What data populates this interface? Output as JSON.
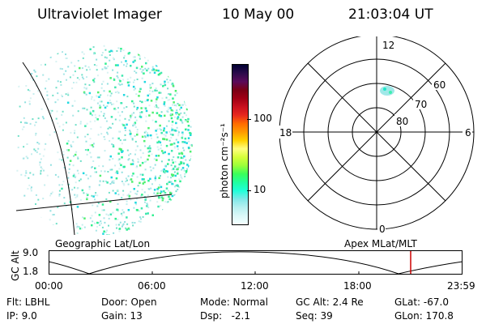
{
  "header": {
    "instrument": "Ultraviolet Imager",
    "date": "10 May 00",
    "time": "21:03:04 UT"
  },
  "colorbar": {
    "unit_label": "photon cm⁻²s⁻¹",
    "tick_100": "100",
    "tick_10": "10",
    "colors": [
      "#000033",
      "#2b0a4a",
      "#5a0a5a",
      "#7a0014",
      "#a00014",
      "#c8101e",
      "#e8281e",
      "#ff6a00",
      "#ff9a00",
      "#ffd200",
      "#ffff80",
      "#d6ff3a",
      "#9aff3a",
      "#3aff5a",
      "#20ffa0",
      "#20ffd8",
      "#80e8e8",
      "#b8f0f0",
      "#dcf8f8",
      "#f4ffff"
    ]
  },
  "polar": {
    "label_12": "12",
    "label_18": "18",
    "label_6": "6",
    "label_0": "0",
    "label_60": "60",
    "label_70": "70",
    "label_80": "80"
  },
  "altitude_panel": {
    "left_label": "Geographic Lat/Lon",
    "right_label": "Apex MLat/MLT",
    "axis_title": "GC Alt",
    "y_top": "9.0",
    "y_bottom": "1.8",
    "x_ticks": [
      "00:00",
      "06:00",
      "12:00",
      "18:00",
      "23:59"
    ],
    "current_time_marker_color": "#cc0000"
  },
  "info": {
    "flt": "Flt: LBHL",
    "ip": "IP:  9.0",
    "door": "Door: Open",
    "gain": "Gain: 13",
    "mode": "Mode: Normal",
    "dsp": "Dsp:   -2.1",
    "gc_alt": "GC Alt: 2.4 Re",
    "seq": "Seq: 39",
    "glat": "GLat: -67.0",
    "glon": "GLon: 170.8"
  }
}
